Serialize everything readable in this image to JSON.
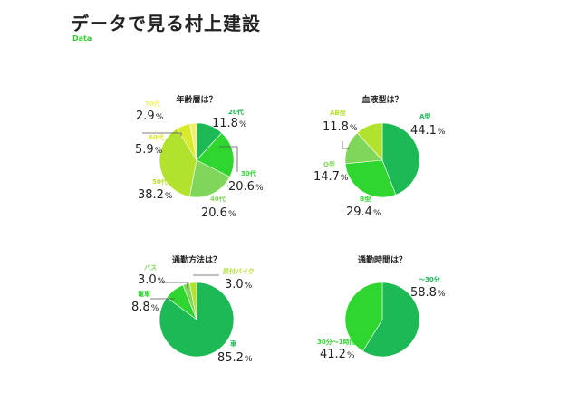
{
  "page": {
    "title": "データで見る村上建設",
    "subtitle": "Data"
  },
  "chart_data": [
    {
      "type": "pie",
      "title": "年齢層は？",
      "slices": [
        {
          "label": "20代",
          "num": "11.8",
          "unit": "%",
          "value": 11.8,
          "color": "#1db954"
        },
        {
          "label": "30代",
          "num": "20.6",
          "unit": "%",
          "value": 20.6,
          "color": "#2fd62f"
        },
        {
          "label": "40代",
          "num": "20.6",
          "unit": "%",
          "value": 20.6,
          "color": "#7fd65a"
        },
        {
          "label": "50代",
          "num": "38.2",
          "unit": "%",
          "value": 38.2,
          "color": "#b3e22e"
        },
        {
          "label": "60代",
          "num": "5.9",
          "unit": "%",
          "value": 5.9,
          "color": "#d8ea2a"
        },
        {
          "label": "70代",
          "num": "2.9",
          "unit": "%",
          "value": 2.9,
          "color": "#f2ee6e"
        }
      ]
    },
    {
      "type": "pie",
      "title": "血液型は？",
      "slices": [
        {
          "label": "A型",
          "num": "44.1",
          "unit": "%",
          "value": 44.1,
          "color": "#1db954"
        },
        {
          "label": "B型",
          "num": "29.4",
          "unit": "%",
          "value": 29.4,
          "color": "#2fd62f"
        },
        {
          "label": "O型",
          "num": "14.7",
          "unit": "%",
          "value": 14.7,
          "color": "#7fd65a"
        },
        {
          "label": "AB型",
          "num": "11.8",
          "unit": "%",
          "value": 11.8,
          "color": "#b3e22e"
        }
      ]
    },
    {
      "type": "pie",
      "title": "通勤方法は？",
      "slices": [
        {
          "label": "車",
          "num": "85.2",
          "unit": "%",
          "value": 85.2,
          "color": "#1db954"
        },
        {
          "label": "電車",
          "num": "8.8",
          "unit": "%",
          "value": 8.8,
          "color": "#2fd62f"
        },
        {
          "label": "バス",
          "num": "3.0",
          "unit": "%",
          "value": 3.0,
          "color": "#7fd65a"
        },
        {
          "label": "原付バイク",
          "num": "3.0",
          "unit": "%",
          "value": 3.0,
          "color": "#b3e22e"
        }
      ]
    },
    {
      "type": "pie",
      "title": "通勤時間は？",
      "slices": [
        {
          "label": "～30分",
          "num": "58.8",
          "unit": "%",
          "value": 58.8,
          "color": "#1db954"
        },
        {
          "label": "30分～1時間",
          "num": "41.2",
          "unit": "%",
          "value": 41.2,
          "color": "#2fd62f"
        }
      ]
    }
  ]
}
